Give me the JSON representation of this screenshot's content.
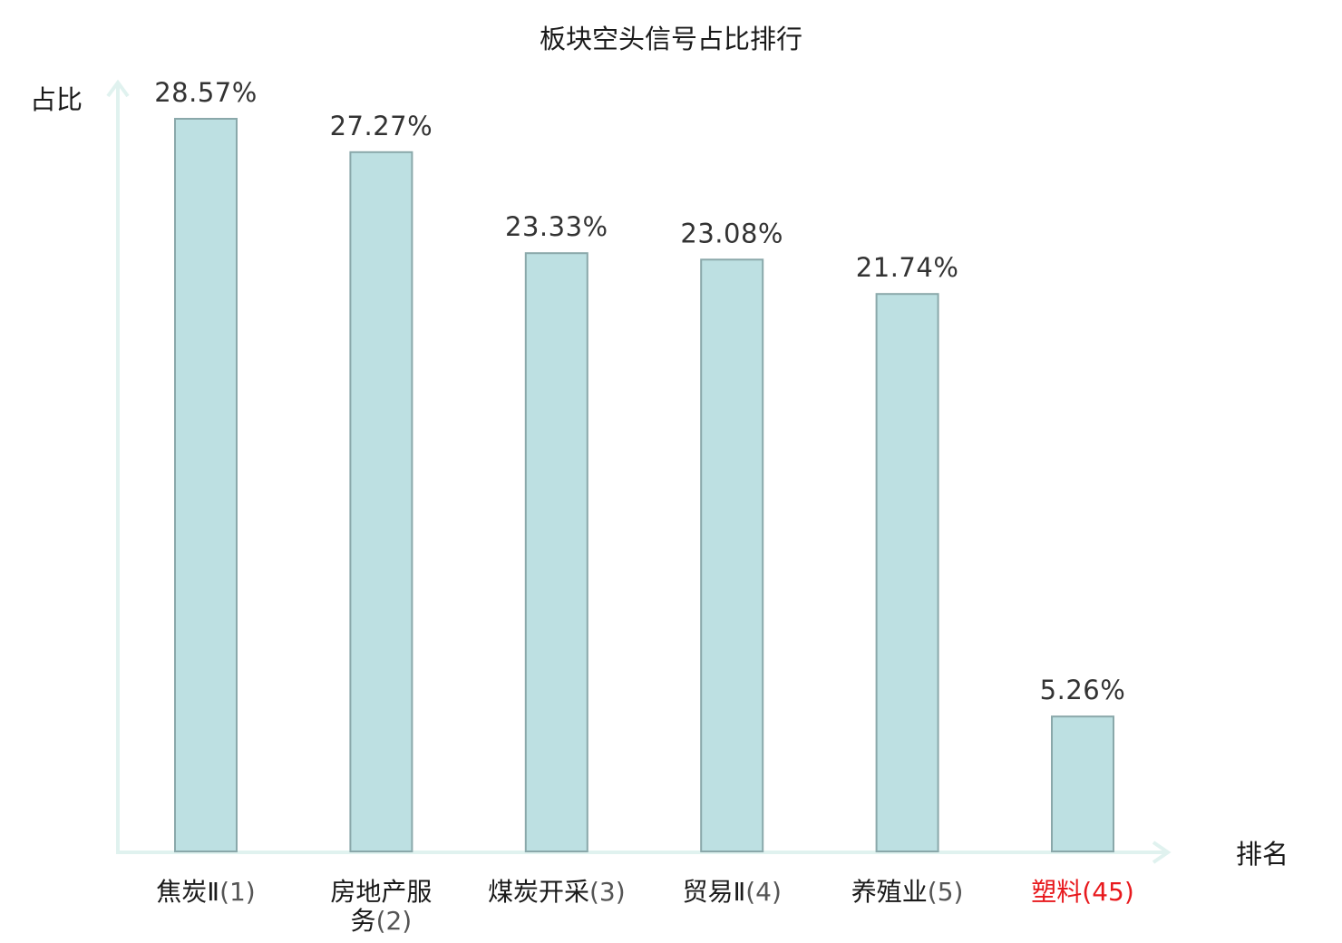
{
  "chart_data": {
    "type": "bar",
    "title": "板块空头信号占比排行",
    "ylabel": "占比",
    "xlabel": "排名",
    "categories": [
      {
        "name": "焦炭Ⅱ",
        "rank": "(1)"
      },
      {
        "name": "房地产服务",
        "rank": "(2)"
      },
      {
        "name": "煤炭开采",
        "rank": "(3)"
      },
      {
        "name": "贸易Ⅱ",
        "rank": "(4)"
      },
      {
        "name": "养殖业",
        "rank": "(5)"
      },
      {
        "name": "塑料",
        "rank": "(45)"
      }
    ],
    "values": [
      28.57,
      27.27,
      23.33,
      23.08,
      21.74,
      5.26
    ],
    "value_labels": [
      "28.57%",
      "27.27%",
      "23.33%",
      "23.08%",
      "21.74%",
      "5.26%"
    ],
    "ylim": [
      0,
      30
    ],
    "highlight_index": 5,
    "colors": {
      "bar_fill": "#bde0e2",
      "bar_stroke": "#8aa8aa",
      "axis": "#e0f2ef",
      "highlight": "#e8191d",
      "label_text": "#1a1a1a"
    },
    "grid": false,
    "legend": "none"
  }
}
